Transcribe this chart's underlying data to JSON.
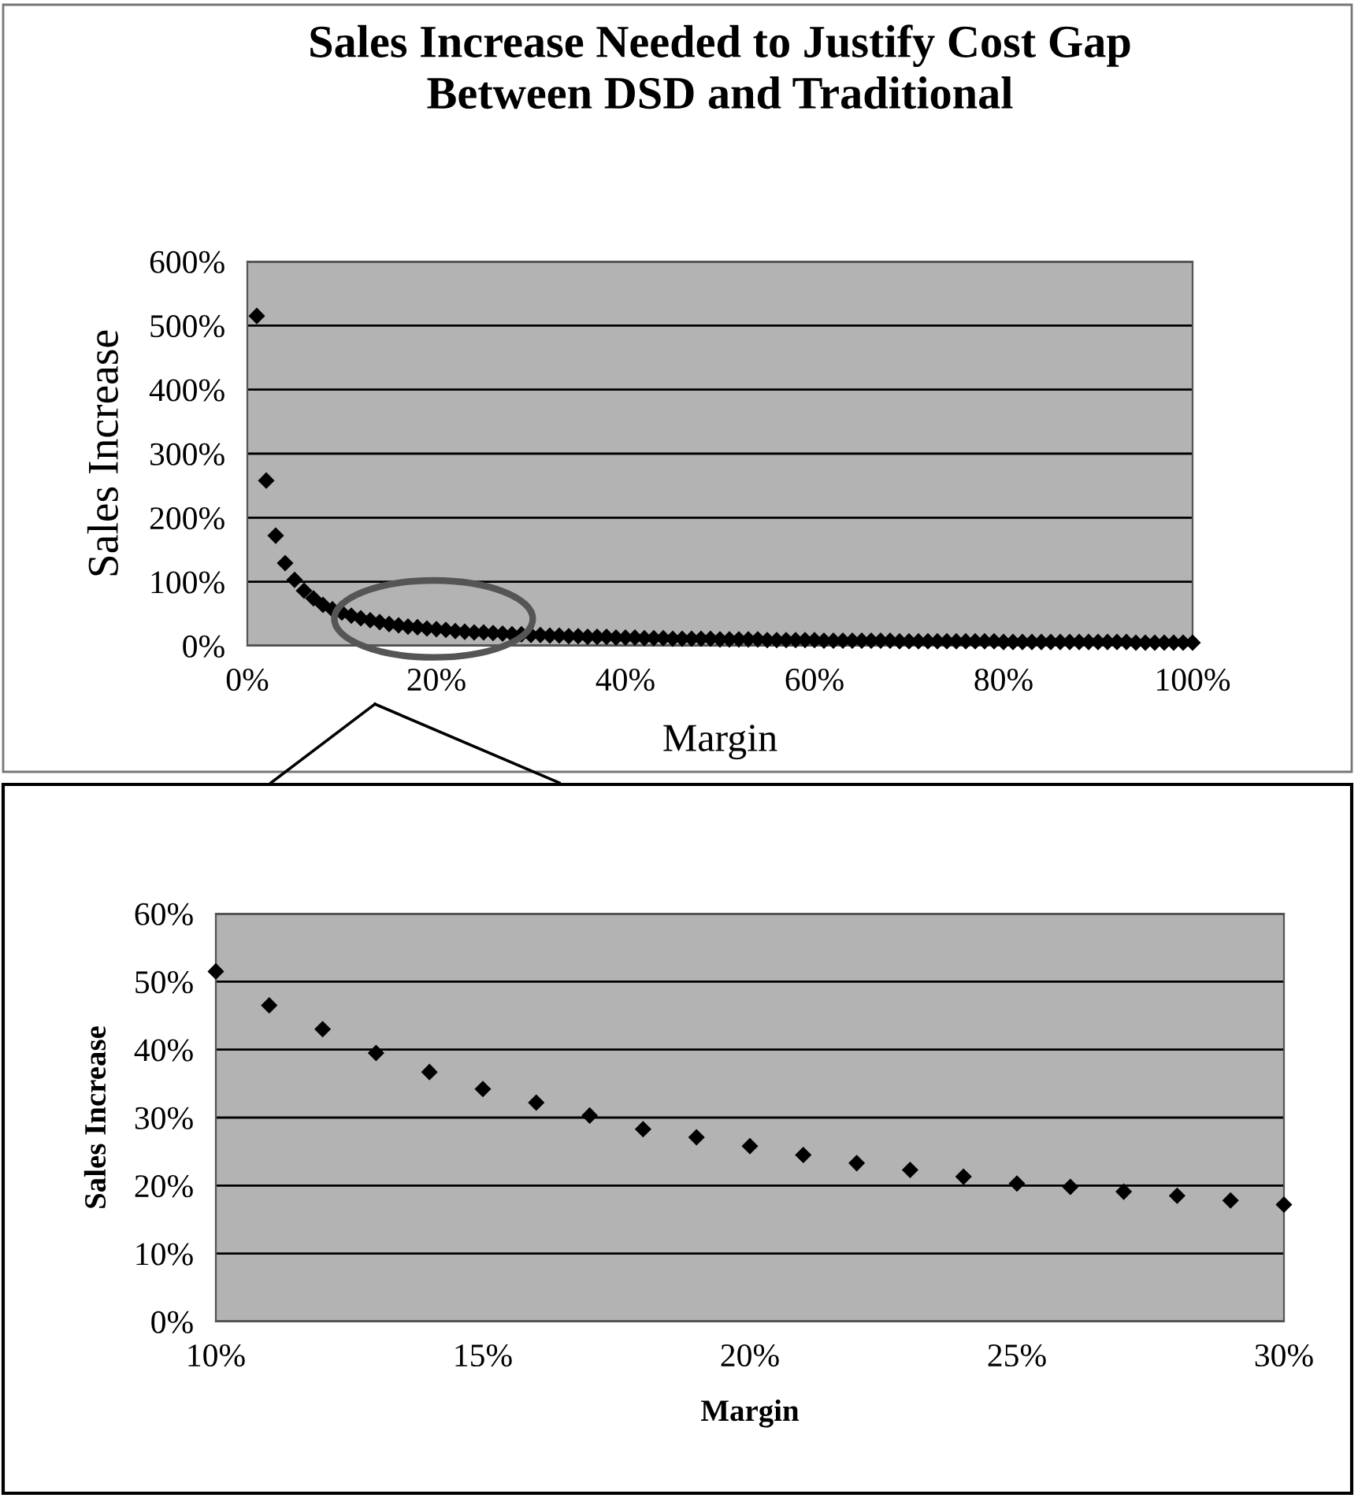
{
  "chart_data": [
    {
      "type": "scatter",
      "title": "Sales Increase Needed to Justify Cost Gap\nBetween DSD and Traditional",
      "xlabel": "Margin",
      "ylabel": "Sales Increase",
      "marker": "diamond",
      "grid": "y",
      "xlim": [
        0,
        100
      ],
      "ylim": [
        0,
        600
      ],
      "xticks": [
        {
          "value": 0,
          "label": "0%"
        },
        {
          "value": 20,
          "label": "20%"
        },
        {
          "value": 40,
          "label": "40%"
        },
        {
          "value": 60,
          "label": "60%"
        },
        {
          "value": 80,
          "label": "80%"
        },
        {
          "value": 100,
          "label": "100%"
        }
      ],
      "yticks": [
        {
          "value": 0,
          "label": "0%"
        },
        {
          "value": 100,
          "label": "100%"
        },
        {
          "value": 200,
          "label": "200%"
        },
        {
          "value": 300,
          "label": "300%"
        },
        {
          "value": 400,
          "label": "400%"
        },
        {
          "value": 500,
          "label": "500%"
        },
        {
          "value": 600,
          "label": "600%"
        }
      ],
      "x": [
        1,
        2,
        3,
        4,
        5,
        6,
        7,
        8,
        9,
        10,
        11,
        12,
        13,
        14,
        15,
        16,
        17,
        18,
        19,
        20,
        21,
        22,
        23,
        24,
        25,
        26,
        27,
        28,
        29,
        30,
        31,
        32,
        33,
        34,
        35,
        36,
        37,
        38,
        39,
        40,
        41,
        42,
        43,
        44,
        45,
        46,
        47,
        48,
        49,
        50,
        51,
        52,
        53,
        54,
        55,
        56,
        57,
        58,
        59,
        60,
        61,
        62,
        63,
        64,
        65,
        66,
        67,
        68,
        69,
        70,
        71,
        72,
        73,
        74,
        75,
        76,
        77,
        78,
        79,
        80,
        81,
        82,
        83,
        84,
        85,
        86,
        87,
        88,
        89,
        90,
        91,
        92,
        93,
        94,
        95,
        96,
        97,
        98,
        99,
        100
      ],
      "series": [
        {
          "color": "#000000",
          "values": [
            515,
            258,
            172,
            129,
            103,
            86,
            74,
            64,
            57,
            52,
            47,
            43,
            40,
            37,
            34,
            32,
            30,
            29,
            27,
            26,
            25,
            23,
            22,
            21,
            21,
            20,
            19,
            18,
            18,
            17,
            17,
            16,
            16,
            15,
            15,
            14,
            14,
            14,
            13,
            13,
            13,
            12,
            12,
            12,
            11,
            11,
            11,
            11,
            11,
            10,
            10,
            10,
            10,
            10,
            9,
            9,
            9,
            9,
            9,
            9,
            8,
            8,
            8,
            8,
            8,
            8,
            8,
            8,
            7,
            7,
            7,
            7,
            7,
            7,
            7,
            7,
            7,
            7,
            7,
            6,
            6,
            6,
            6,
            6,
            6,
            6,
            6,
            6,
            6,
            6,
            6,
            6,
            6,
            5,
            5,
            5,
            5,
            5,
            5,
            5
          ]
        }
      ]
    },
    {
      "type": "scatter",
      "xlabel": "Margin",
      "ylabel": "Sales Increase",
      "marker": "diamond",
      "grid": "y",
      "xlim": [
        10,
        30
      ],
      "ylim": [
        0,
        60
      ],
      "xticks": [
        {
          "value": 10,
          "label": "10%"
        },
        {
          "value": 15,
          "label": "15%"
        },
        {
          "value": 20,
          "label": "20%"
        },
        {
          "value": 25,
          "label": "25%"
        },
        {
          "value": 30,
          "label": "30%"
        }
      ],
      "yticks": [
        {
          "value": 0,
          "label": "0%"
        },
        {
          "value": 10,
          "label": "10%"
        },
        {
          "value": 20,
          "label": "20%"
        },
        {
          "value": 30,
          "label": "30%"
        },
        {
          "value": 40,
          "label": "40%"
        },
        {
          "value": 50,
          "label": "50%"
        },
        {
          "value": 60,
          "label": "60%"
        }
      ],
      "x": [
        10,
        11,
        12,
        13,
        14,
        15,
        16,
        17,
        18,
        19,
        20,
        21,
        22,
        23,
        24,
        25,
        26,
        27,
        28,
        29,
        30
      ],
      "series": [
        {
          "color": "#000000",
          "values": [
            51.5,
            46.5,
            43,
            39.5,
            36.7,
            34.2,
            32.2,
            30.3,
            28.3,
            27.1,
            25.8,
            24.5,
            23.3,
            22.3,
            21.3,
            20.3,
            19.8,
            19.1,
            18.5,
            17.8,
            17.2
          ]
        }
      ]
    }
  ]
}
